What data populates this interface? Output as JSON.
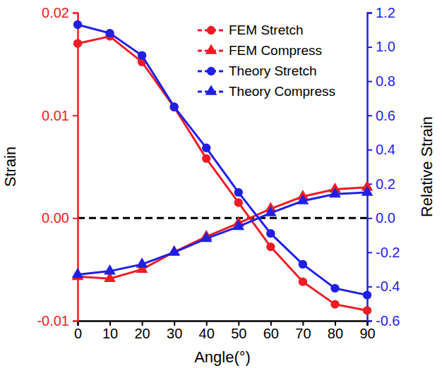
{
  "chart_data": {
    "type": "line",
    "x_label": "Angle(°)",
    "y_label": "Strain",
    "y2_label": "Relative Strain",
    "x": [
      0,
      10,
      20,
      30,
      40,
      50,
      60,
      70,
      80,
      90
    ],
    "xlim": [
      0,
      90
    ],
    "xticks": [
      0,
      10,
      20,
      30,
      40,
      50,
      60,
      70,
      80,
      90
    ],
    "ylim": [
      -0.01,
      0.02
    ],
    "yticks": [
      -0.01,
      {
        "value": 0,
        "label": "0.00"
      },
      0.01,
      0.02
    ],
    "y2lim": [
      -0.6,
      1.2
    ],
    "y2ticks": [
      -0.6,
      -0.4,
      -0.2,
      {
        "value": 0,
        "label": "0.0"
      },
      0.2,
      0.4,
      0.6,
      0.8,
      {
        "value": 1.0,
        "label": "1.0"
      },
      1.2
    ],
    "hlines": [
      0
    ],
    "legend": "upper right",
    "series": [
      {
        "name": "FEM Stretch",
        "color": "#ee1c25",
        "marker": "circle",
        "axis": "y",
        "values": [
          0.017,
          0.0177,
          0.0152,
          0.0108,
          0.0058,
          0.0015,
          -0.0028,
          -0.0062,
          -0.0084,
          -0.009
        ]
      },
      {
        "name": "FEM Compress",
        "color": "#ee1c25",
        "marker": "triangle",
        "axis": "y",
        "values": [
          -0.0057,
          -0.0059,
          -0.005,
          -0.0033,
          -0.0018,
          -0.0005,
          0.0009,
          0.0021,
          0.0028,
          0.003
        ]
      },
      {
        "name": "Theory Stretch",
        "color": "#1f1fe6",
        "marker": "circle",
        "axis": "y2",
        "values": [
          1.13,
          1.08,
          0.95,
          0.65,
          0.41,
          0.15,
          -0.09,
          -0.27,
          -0.41,
          -0.45
        ]
      },
      {
        "name": "Theory Compress",
        "color": "#1f1fe6",
        "marker": "triangle",
        "axis": "y2",
        "values": [
          -0.33,
          -0.31,
          -0.27,
          -0.2,
          -0.12,
          -0.05,
          0.03,
          0.1,
          0.14,
          0.15
        ]
      }
    ]
  }
}
